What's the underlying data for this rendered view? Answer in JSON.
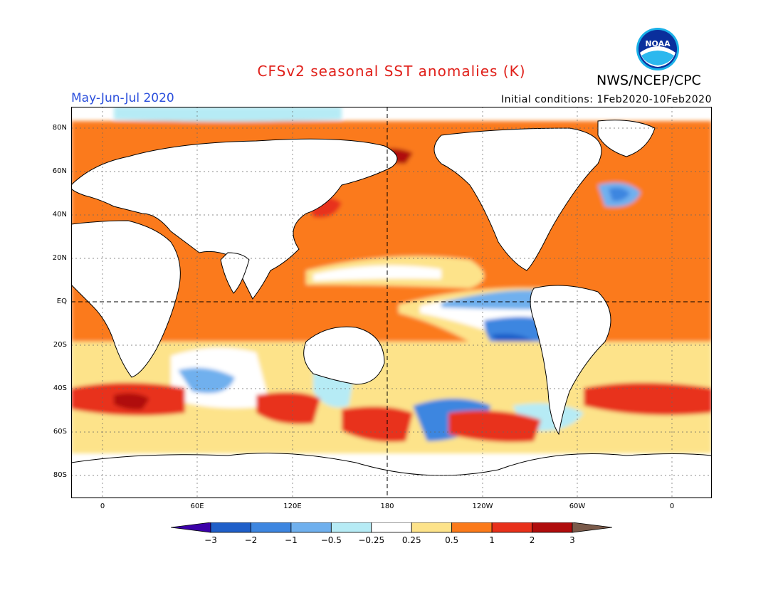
{
  "title": "CFSv2 seasonal SST anomalies (K)",
  "agency": "NWS/NCEP/CPC",
  "logo_text": "NOAA",
  "period": "May-Jun-Jul 2020",
  "initial_conditions": "Initial conditions: 1Feb2020-10Feb2020",
  "lat_labels": [
    "80N",
    "60N",
    "40N",
    "20N",
    "EQ",
    "20S",
    "40S",
    "60S",
    "80S"
  ],
  "lon_labels": [
    "0",
    "60E",
    "120E",
    "180",
    "120W",
    "60W",
    "0"
  ],
  "colorbar": {
    "labels": [
      "-3",
      "-2",
      "-1",
      "-0.5",
      "-0.25",
      "0.25",
      "0.5",
      "1",
      "2",
      "3"
    ],
    "colors": [
      "#3b00a8",
      "#1f5fc9",
      "#3d86e0",
      "#6fb0ee",
      "#b6ebf5",
      "#ffffff",
      "#fde38a",
      "#fb7a1a",
      "#e8301a",
      "#b00c0c",
      "#7a5a4a"
    ]
  }
}
